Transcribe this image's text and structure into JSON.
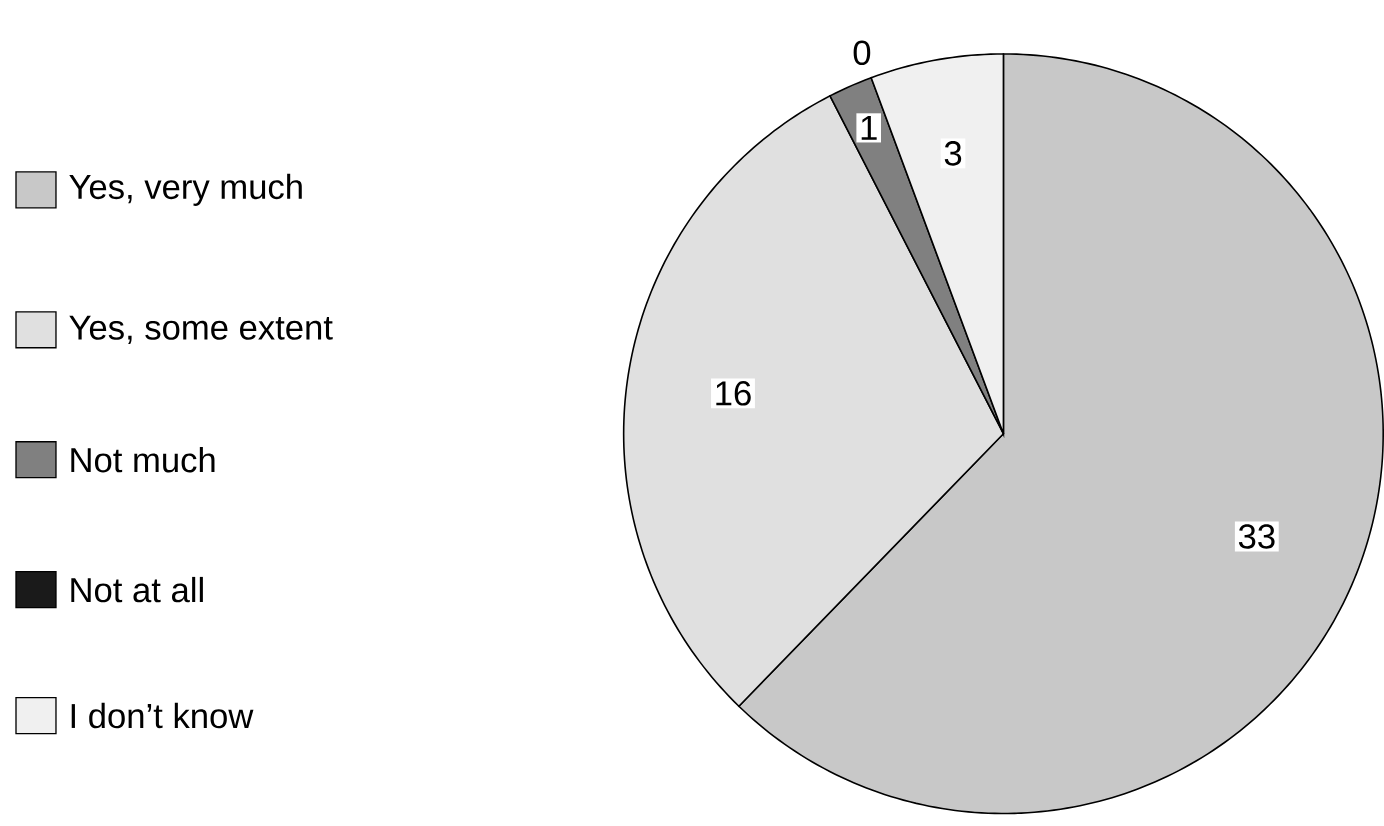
{
  "chart_data": {
    "type": "pie",
    "categories": [
      "Yes, very much",
      "Yes, some extent",
      "Not much",
      "Not at all",
      "I don’t know"
    ],
    "values": [
      33,
      16,
      1,
      0,
      3
    ],
    "colors": [
      "#c8c8c8",
      "#e0e0e0",
      "#808080",
      "#1a1a1a",
      "#f0f0f0"
    ],
    "value_labels": [
      "33",
      "16",
      "1",
      "0",
      "3"
    ],
    "legend": "left"
  }
}
